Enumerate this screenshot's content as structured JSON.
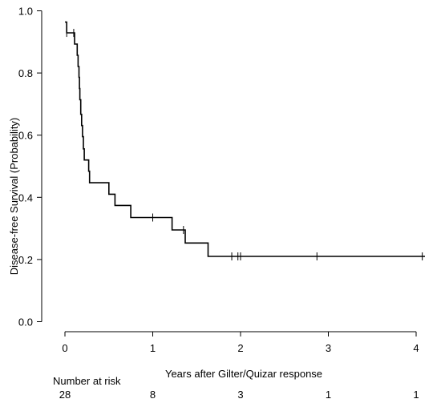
{
  "chart_data": {
    "type": "line",
    "subtype": "kaplan-meier",
    "title": "",
    "xlabel": "Years after Gilter/Quizar response",
    "ylabel": "Disease-free Survival (Probability)",
    "xlim": [
      -0.1,
      4.2
    ],
    "ylim": [
      -0.04,
      1.0
    ],
    "x_ticks": [
      0,
      1,
      2,
      3,
      4
    ],
    "x_tick_labels": [
      "0",
      "1",
      "2",
      "3",
      "4"
    ],
    "y_ticks": [
      0.0,
      0.2,
      0.4,
      0.6,
      0.8,
      1.0
    ],
    "y_tick_labels": [
      "0.0",
      "0.2",
      "0.4",
      "0.6",
      "0.8",
      "1.0"
    ],
    "grid": false,
    "legend": "none",
    "line_color": "#000000",
    "series": [
      {
        "steps": [
          [
            0.0,
            0.964
          ],
          [
            0.02,
            0.929
          ],
          [
            0.11,
            0.893
          ],
          [
            0.14,
            0.857
          ],
          [
            0.15,
            0.821
          ],
          [
            0.16,
            0.786
          ],
          [
            0.165,
            0.75
          ],
          [
            0.17,
            0.714
          ],
          [
            0.18,
            0.667
          ],
          [
            0.19,
            0.631
          ],
          [
            0.2,
            0.595
          ],
          [
            0.21,
            0.556
          ],
          [
            0.22,
            0.52
          ],
          [
            0.27,
            0.484
          ],
          [
            0.28,
            0.447
          ],
          [
            0.5,
            0.41
          ],
          [
            0.57,
            0.374
          ],
          [
            0.75,
            0.335
          ],
          [
            1.22,
            0.295
          ],
          [
            1.37,
            0.253
          ],
          [
            1.63,
            0.21
          ]
        ],
        "end_x": 4.1,
        "censored": [
          [
            0.02,
            0.929
          ],
          [
            0.1,
            0.929
          ],
          [
            1.0,
            0.335
          ],
          [
            1.35,
            0.295
          ],
          [
            1.9,
            0.21
          ],
          [
            1.97,
            0.21
          ],
          [
            2.0,
            0.21
          ],
          [
            2.87,
            0.21
          ],
          [
            4.07,
            0.21
          ]
        ]
      }
    ],
    "risk_table": {
      "label": "Number at risk",
      "times": [
        0,
        1,
        2,
        3,
        4
      ],
      "counts": [
        "28",
        "8",
        "3",
        "1",
        "1"
      ]
    }
  }
}
